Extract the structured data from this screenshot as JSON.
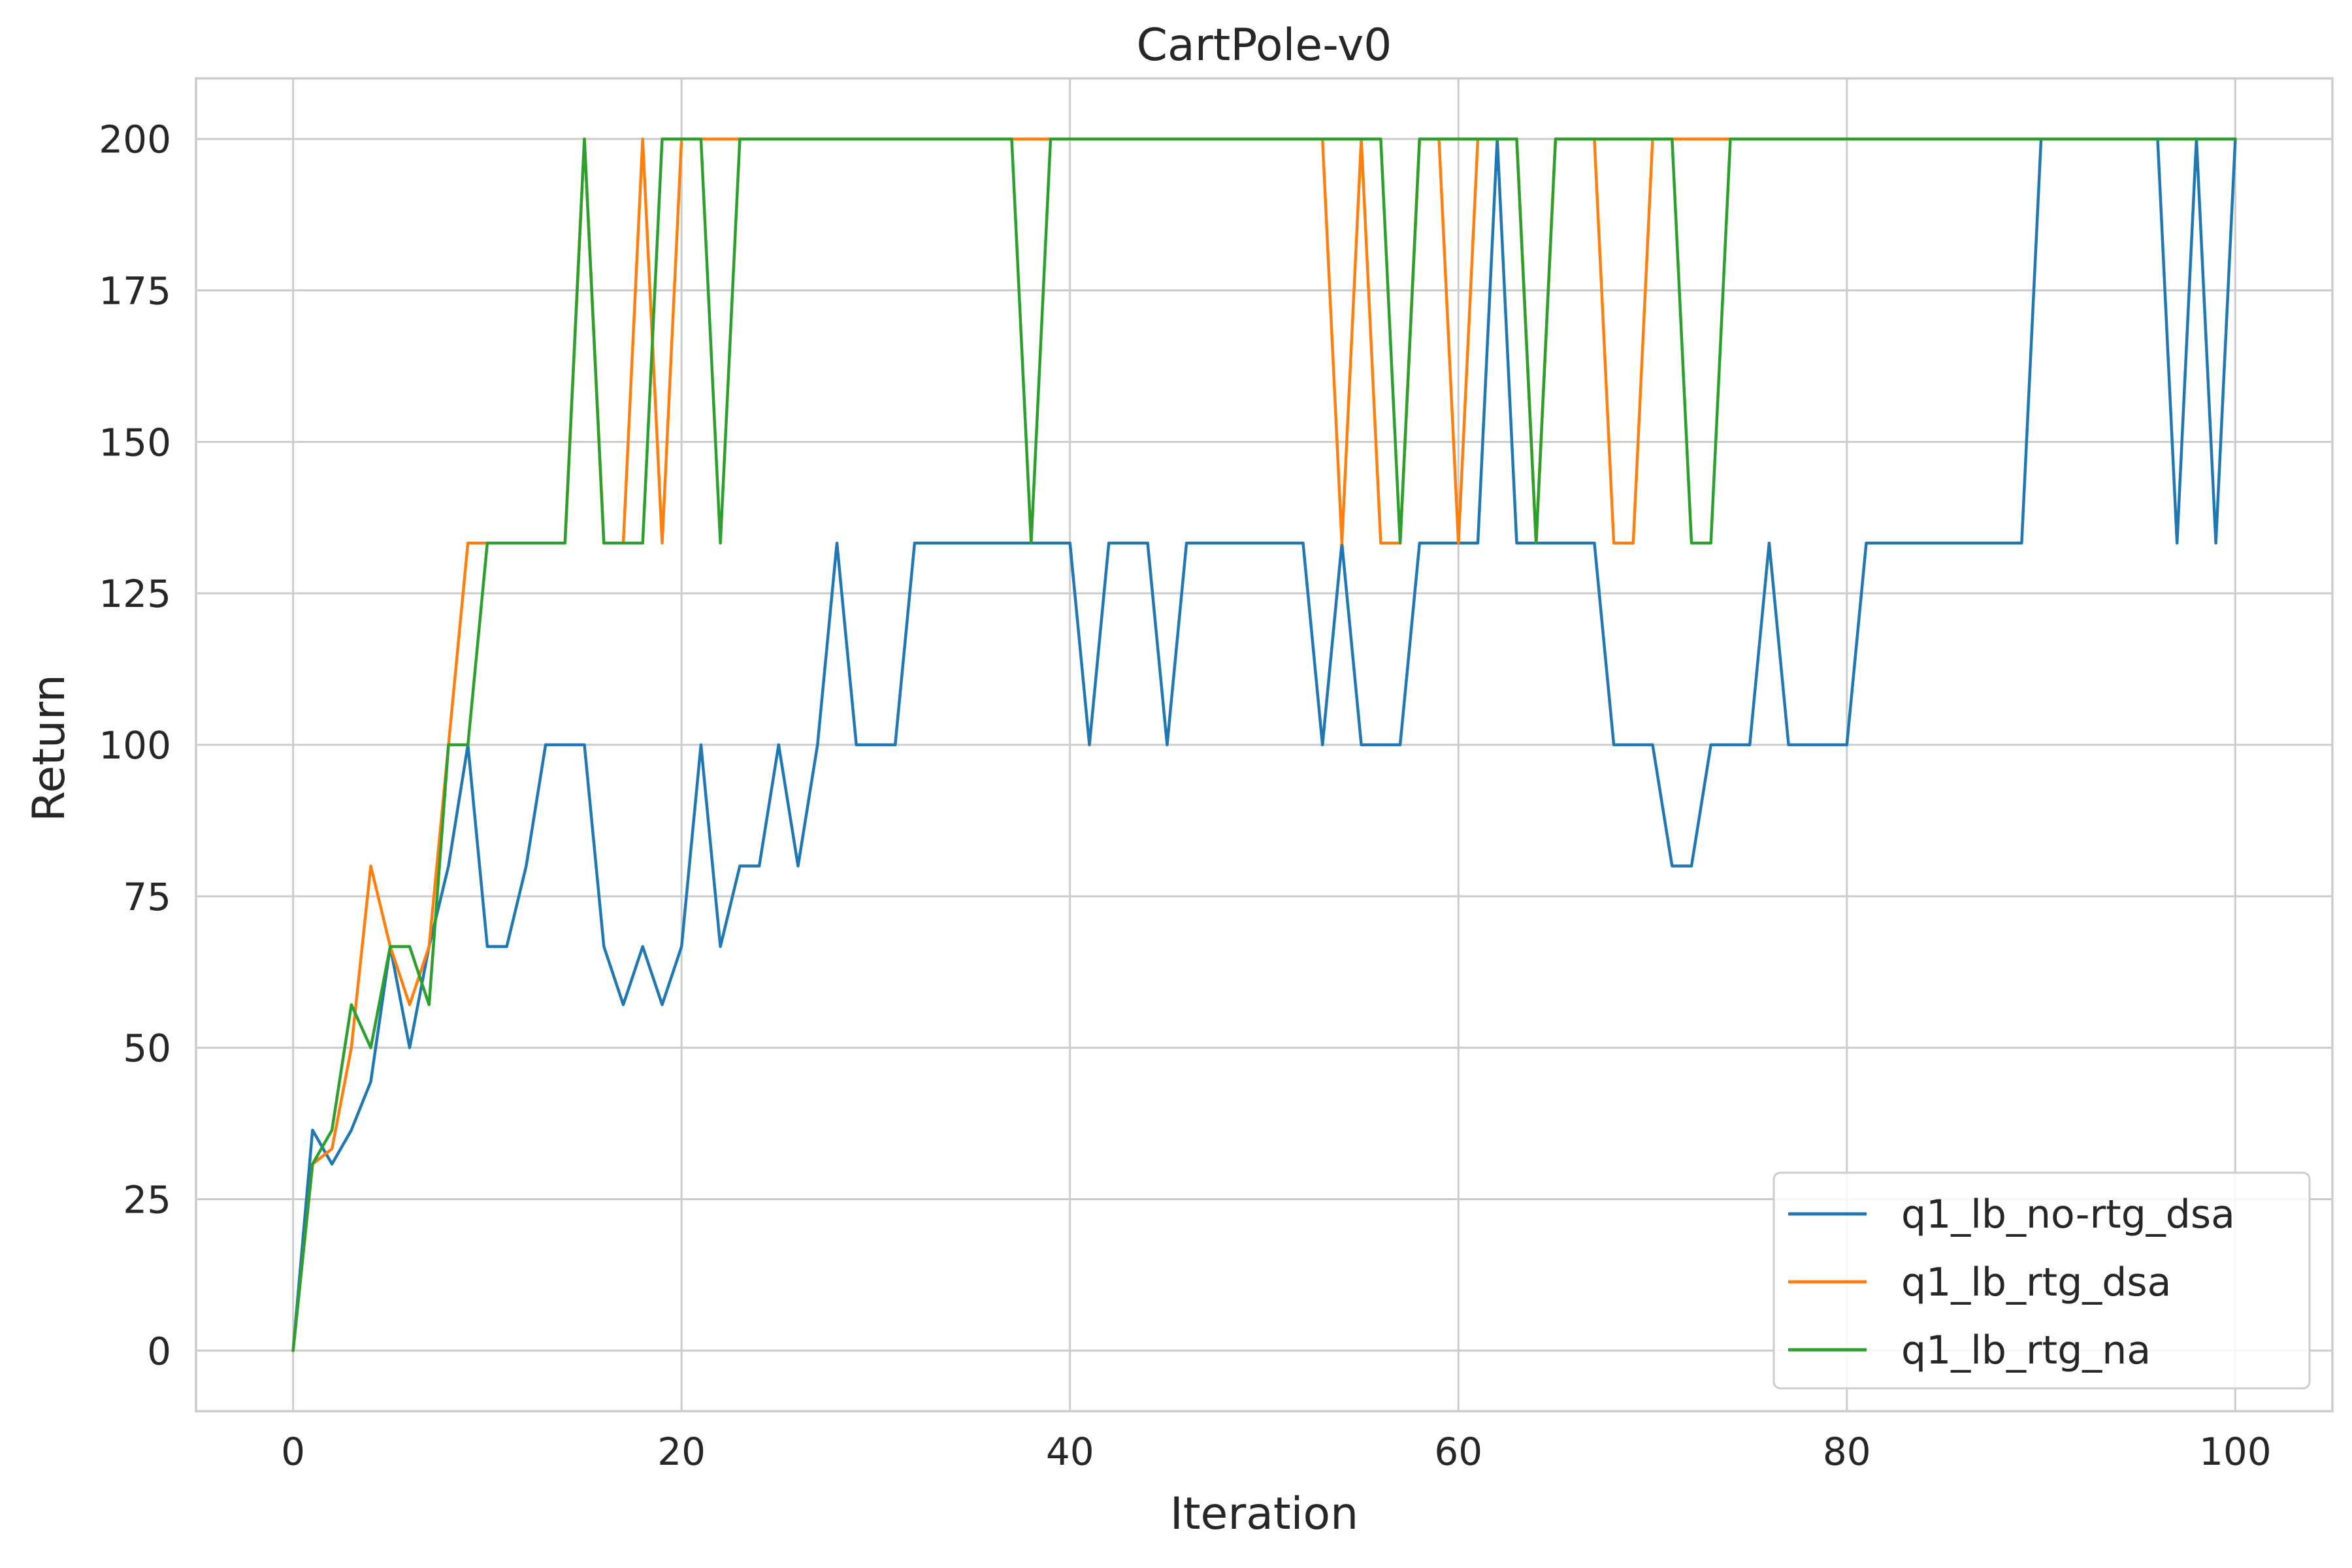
{
  "chart_data": {
    "type": "line",
    "title": "CartPole-v0",
    "xlabel": "Iteration",
    "ylabel": "Return",
    "xlim": [
      -5,
      105
    ],
    "ylim": [
      -10,
      210
    ],
    "xticks": [
      0,
      20,
      40,
      60,
      80,
      100
    ],
    "yticks": [
      0,
      25,
      50,
      75,
      100,
      125,
      150,
      175,
      200
    ],
    "grid": true,
    "legend_position": "lower-right",
    "series": [
      {
        "name": "q1_lb_no-rtg_dsa",
        "color": "#1f77b4",
        "x": [
          0,
          1,
          2,
          3,
          4,
          5,
          6,
          7,
          8,
          9,
          10,
          11,
          12,
          13,
          14,
          15,
          16,
          17,
          18,
          19,
          20,
          21,
          22,
          23,
          24,
          25,
          26,
          27,
          28,
          29,
          30,
          31,
          32,
          33,
          34,
          35,
          36,
          37,
          38,
          39,
          40,
          41,
          42,
          43,
          44,
          45,
          46,
          47,
          48,
          49,
          50,
          51,
          52,
          53,
          54,
          55,
          56,
          57,
          58,
          59,
          60,
          61,
          62,
          63,
          64,
          65,
          66,
          67,
          68,
          69,
          70,
          71,
          72,
          73,
          74,
          75,
          76,
          77,
          78,
          79,
          80,
          81,
          82,
          83,
          84,
          85,
          86,
          87,
          88,
          89,
          90,
          91,
          92,
          93,
          94,
          95,
          96,
          97,
          98,
          99,
          100
        ],
        "y": [
          0,
          36.4,
          30.8,
          36.4,
          44.4,
          66.7,
          50,
          66.7,
          80,
          100,
          66.7,
          66.7,
          80,
          100,
          100,
          100,
          66.7,
          57.1,
          66.7,
          57.1,
          66.7,
          100,
          66.7,
          80,
          80,
          100,
          80,
          100,
          133.3,
          100,
          100,
          100,
          133.3,
          133.3,
          133.3,
          133.3,
          133.3,
          133.3,
          133.3,
          133.3,
          133.3,
          100,
          133.3,
          133.3,
          133.3,
          100,
          133.3,
          133.3,
          133.3,
          133.3,
          133.3,
          133.3,
          133.3,
          100,
          133.3,
          100,
          100,
          100,
          133.3,
          133.3,
          133.3,
          133.3,
          200,
          133.3,
          133.3,
          133.3,
          133.3,
          133.3,
          100,
          100,
          100,
          80,
          80,
          100,
          100,
          100,
          133.3,
          100,
          100,
          100,
          100,
          133.3,
          133.3,
          133.3,
          133.3,
          133.3,
          133.3,
          133.3,
          133.3,
          133.3,
          200,
          200,
          200,
          200,
          200,
          200,
          200,
          133.3,
          200,
          133.3,
          200
        ]
      },
      {
        "name": "q1_lb_rtg_dsa",
        "color": "#ff7f0e",
        "x": [
          0,
          1,
          2,
          3,
          4,
          5,
          6,
          7,
          8,
          9,
          10,
          11,
          12,
          13,
          14,
          15,
          16,
          17,
          18,
          19,
          20,
          21,
          22,
          23,
          24,
          25,
          26,
          27,
          28,
          29,
          30,
          31,
          32,
          33,
          34,
          35,
          36,
          37,
          38,
          39,
          40,
          41,
          42,
          43,
          44,
          45,
          46,
          47,
          48,
          49,
          50,
          51,
          52,
          53,
          54,
          55,
          56,
          57,
          58,
          59,
          60,
          61,
          62,
          63,
          64,
          65,
          66,
          67,
          68,
          69,
          70,
          71,
          72,
          73,
          74,
          75,
          76,
          77,
          78,
          79,
          80,
          81,
          82,
          83,
          84,
          85,
          86,
          87,
          88,
          89,
          90,
          91,
          92,
          93,
          94,
          95,
          96,
          97,
          98,
          99,
          100
        ],
        "y": [
          0,
          30.8,
          33.3,
          50,
          80,
          66.7,
          57.1,
          66.7,
          100,
          133.3,
          133.3,
          133.3,
          133.3,
          133.3,
          133.3,
          200,
          133.3,
          133.3,
          200,
          133.3,
          200,
          200,
          200,
          200,
          200,
          200,
          200,
          200,
          200,
          200,
          200,
          200,
          200,
          200,
          200,
          200,
          200,
          200,
          200,
          200,
          200,
          200,
          200,
          200,
          200,
          200,
          200,
          200,
          200,
          200,
          200,
          200,
          200,
          200,
          133.3,
          200,
          133.3,
          133.3,
          200,
          200,
          133.3,
          200,
          200,
          200,
          133.3,
          200,
          200,
          200,
          133.3,
          133.3,
          200,
          200,
          200,
          200,
          200,
          200,
          200,
          200,
          200,
          200,
          200,
          200,
          200,
          200,
          200,
          200,
          200,
          200,
          200,
          200,
          200,
          200,
          200,
          200,
          200,
          200,
          200,
          200,
          200,
          200,
          200
        ]
      },
      {
        "name": "q1_lb_rtg_na",
        "color": "#2ca02c",
        "x": [
          0,
          1,
          2,
          3,
          4,
          5,
          6,
          7,
          8,
          9,
          10,
          11,
          12,
          13,
          14,
          15,
          16,
          17,
          18,
          19,
          20,
          21,
          22,
          23,
          24,
          25,
          26,
          27,
          28,
          29,
          30,
          31,
          32,
          33,
          34,
          35,
          36,
          37,
          38,
          39,
          40,
          41,
          42,
          43,
          44,
          45,
          46,
          47,
          48,
          49,
          50,
          51,
          52,
          53,
          54,
          55,
          56,
          57,
          58,
          59,
          60,
          61,
          62,
          63,
          64,
          65,
          66,
          67,
          68,
          69,
          70,
          71,
          72,
          73,
          74,
          75,
          76,
          77,
          78,
          79,
          80,
          81,
          82,
          83,
          84,
          85,
          86,
          87,
          88,
          89,
          90,
          91,
          92,
          93,
          94,
          95,
          96,
          97,
          98,
          99,
          100
        ],
        "y": [
          0,
          30.8,
          36.4,
          57.1,
          50,
          66.7,
          66.7,
          57.1,
          100,
          100,
          133.3,
          133.3,
          133.3,
          133.3,
          133.3,
          200,
          133.3,
          133.3,
          133.3,
          200,
          200,
          200,
          133.3,
          200,
          200,
          200,
          200,
          200,
          200,
          200,
          200,
          200,
          200,
          200,
          200,
          200,
          200,
          200,
          133.3,
          200,
          200,
          200,
          200,
          200,
          200,
          200,
          200,
          200,
          200,
          200,
          200,
          200,
          200,
          200,
          200,
          200,
          200,
          133.3,
          200,
          200,
          200,
          200,
          200,
          200,
          133.3,
          200,
          200,
          200,
          200,
          200,
          200,
          200,
          133.3,
          133.3,
          200,
          200,
          200,
          200,
          200,
          200,
          200,
          200,
          200,
          200,
          200,
          200,
          200,
          200,
          200,
          200,
          200,
          200,
          200,
          200,
          200,
          200,
          200,
          200,
          200,
          200,
          200
        ]
      }
    ]
  }
}
